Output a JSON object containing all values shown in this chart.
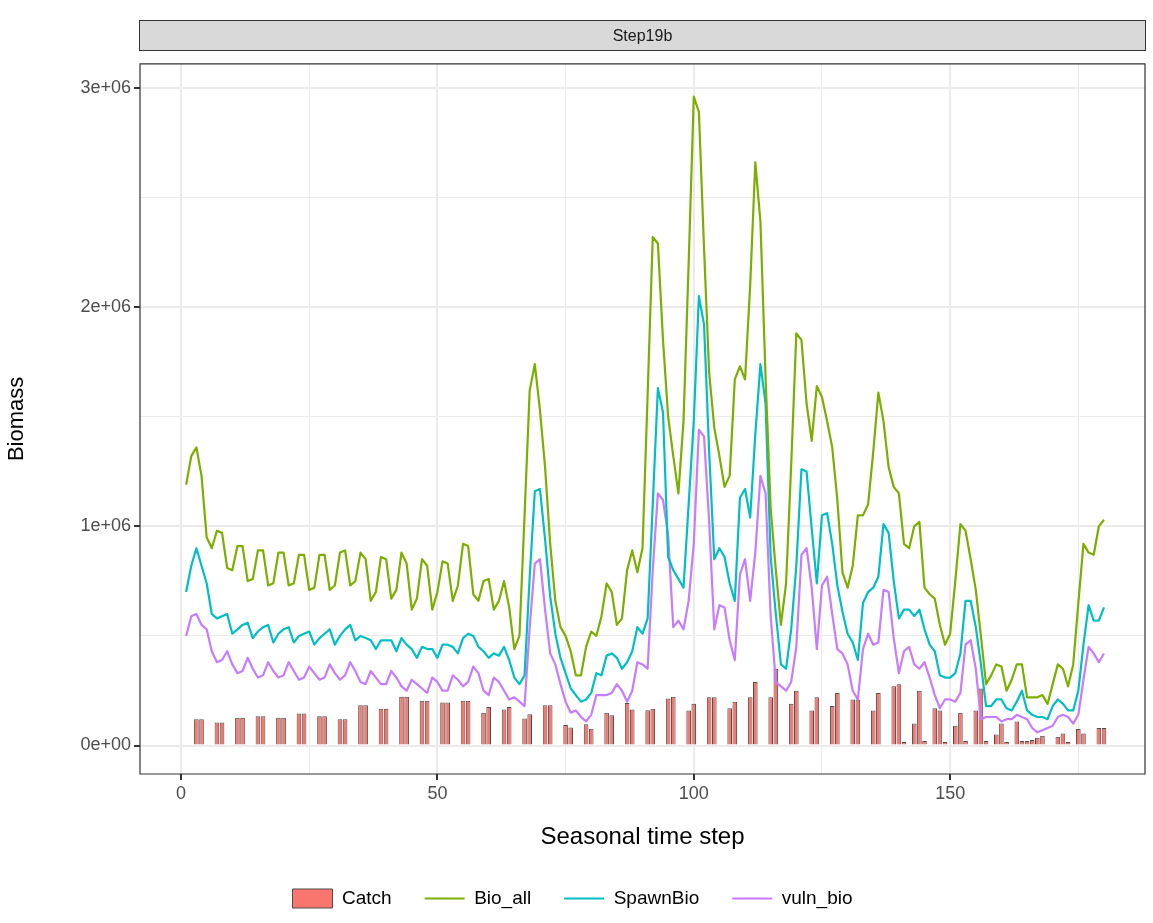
{
  "chart_data": {
    "type": "line",
    "title": "Step19b",
    "xlabel": "Seasonal time step",
    "ylabel": "Biomass",
    "x": [
      1,
      2,
      3,
      4,
      5,
      6,
      7,
      8,
      9,
      10,
      11,
      12,
      13,
      14,
      15,
      16,
      17,
      18,
      19,
      20,
      21,
      22,
      23,
      24,
      25,
      26,
      27,
      28,
      29,
      30,
      31,
      32,
      33,
      34,
      35,
      36,
      37,
      38,
      39,
      40,
      41,
      42,
      43,
      44,
      45,
      46,
      47,
      48,
      49,
      50,
      51,
      52,
      53,
      54,
      55,
      56,
      57,
      58,
      59,
      60,
      61,
      62,
      63,
      64,
      65,
      66,
      67,
      68,
      69,
      70,
      71,
      72,
      73,
      74,
      75,
      76,
      77,
      78,
      79,
      80,
      81,
      82,
      83,
      84,
      85,
      86,
      87,
      88,
      89,
      90,
      91,
      92,
      93,
      94,
      95,
      96,
      97,
      98,
      99,
      100,
      101,
      102,
      103,
      104,
      105,
      106,
      107,
      108,
      109,
      110,
      111,
      112,
      113,
      114,
      115,
      116,
      117,
      118,
      119,
      120,
      121,
      122,
      123,
      124,
      125,
      126,
      127,
      128,
      129,
      130,
      131,
      132,
      133,
      134,
      135,
      136,
      137,
      138,
      139,
      140,
      141,
      142,
      143,
      144,
      145,
      146,
      147,
      148,
      149,
      150,
      151,
      152,
      153,
      154,
      155,
      156,
      157,
      158,
      159,
      160,
      161,
      162,
      163,
      164,
      165,
      166,
      167,
      168,
      169,
      170,
      171,
      172,
      173,
      174,
      175,
      176,
      177,
      178,
      179,
      180
    ],
    "series": [
      {
        "name": "Catch",
        "type": "bar",
        "color": "#f8766d",
        "x": [
          3,
          4,
          7,
          8,
          11,
          12,
          15,
          16,
          19,
          20,
          23,
          24,
          27,
          28,
          31,
          32,
          35,
          36,
          39,
          40,
          43,
          44,
          47,
          48,
          51,
          52,
          55,
          56,
          59,
          60,
          63,
          64,
          67,
          68,
          71,
          72,
          75,
          76,
          79,
          80,
          83,
          84,
          87,
          88,
          91,
          92,
          95,
          96,
          99,
          100,
          103,
          104,
          107,
          108,
          111,
          112,
          115,
          116,
          119,
          120,
          123,
          124,
          127,
          128,
          131,
          132,
          135,
          136,
          139,
          140,
          141,
          143,
          144,
          145,
          147,
          148,
          149,
          151,
          152,
          153,
          155,
          156,
          157,
          159,
          160,
          161,
          163,
          164,
          165,
          166,
          167,
          168,
          171,
          172,
          173,
          175,
          176,
          179,
          180
        ],
        "values": [
          120000,
          120000,
          105000,
          105000,
          127000,
          127000,
          134000,
          134000,
          127000,
          127000,
          146000,
          146000,
          134000,
          134000,
          120000,
          120000,
          184000,
          184000,
          168000,
          168000,
          222000,
          222000,
          204000,
          204000,
          196000,
          196000,
          204000,
          204000,
          149000,
          176000,
          164000,
          176000,
          123000,
          143000,
          184000,
          184000,
          93000,
          82000,
          97000,
          77000,
          149000,
          138000,
          194000,
          164000,
          161000,
          168000,
          214000,
          222000,
          160000,
          190000,
          220000,
          220000,
          170000,
          200000,
          220000,
          290000,
          220000,
          350000,
          190000,
          250000,
          160000,
          220000,
          180000,
          240000,
          210000,
          210000,
          160000,
          240000,
          270000,
          280000,
          16000,
          100000,
          250000,
          20000,
          170000,
          160000,
          16000,
          90000,
          150000,
          20000,
          160000,
          260000,
          20000,
          50000,
          100000,
          16000,
          110000,
          20000,
          20000,
          25000,
          35000,
          45000,
          40000,
          55000,
          16000,
          75000,
          55000,
          80000,
          80000
        ]
      },
      {
        "name": "Bio_all",
        "color": "#7cae00",
        "values": [
          1190000,
          1320000,
          1360000,
          1230000,
          950000,
          900000,
          980000,
          970000,
          810000,
          800000,
          910000,
          910000,
          750000,
          760000,
          890000,
          890000,
          730000,
          740000,
          880000,
          880000,
          730000,
          740000,
          870000,
          870000,
          710000,
          720000,
          870000,
          870000,
          710000,
          730000,
          880000,
          890000,
          730000,
          750000,
          880000,
          850000,
          660000,
          700000,
          860000,
          850000,
          670000,
          710000,
          880000,
          830000,
          620000,
          670000,
          850000,
          820000,
          620000,
          700000,
          840000,
          830000,
          660000,
          730000,
          920000,
          910000,
          690000,
          660000,
          750000,
          760000,
          620000,
          660000,
          750000,
          630000,
          440000,
          500000,
          1050000,
          1620000,
          1740000,
          1530000,
          1270000,
          920000,
          660000,
          540000,
          500000,
          430000,
          320000,
          320000,
          450000,
          520000,
          500000,
          590000,
          740000,
          700000,
          550000,
          580000,
          800000,
          890000,
          790000,
          900000,
          1600000,
          2320000,
          2290000,
          1850000,
          1500000,
          1320000,
          1150000,
          1480000,
          2200000,
          2960000,
          2890000,
          2270000,
          1700000,
          1450000,
          1320000,
          1180000,
          1230000,
          1670000,
          1730000,
          1670000,
          2100000,
          2660000,
          2390000,
          1680000,
          1080000,
          800000,
          550000,
          740000,
          1280000,
          1880000,
          1850000,
          1560000,
          1390000,
          1640000,
          1590000,
          1480000,
          1360000,
          1120000,
          790000,
          720000,
          820000,
          1050000,
          1050000,
          1100000,
          1340000,
          1610000,
          1480000,
          1270000,
          1180000,
          1150000,
          920000,
          900000,
          1000000,
          1020000,
          720000,
          690000,
          670000,
          550000,
          460000,
          510000,
          750000,
          1010000,
          980000,
          850000,
          710000,
          500000,
          280000,
          320000,
          370000,
          360000,
          250000,
          300000,
          370000,
          370000,
          220000,
          220000,
          220000,
          230000,
          190000,
          280000,
          370000,
          350000,
          270000,
          370000,
          650000,
          920000,
          880000,
          870000,
          1000000,
          1030000
        ]
      },
      {
        "name": "SpawnBio",
        "color": "#00bfc4",
        "values": [
          700000,
          820000,
          900000,
          820000,
          740000,
          600000,
          580000,
          590000,
          600000,
          510000,
          530000,
          550000,
          560000,
          490000,
          520000,
          540000,
          550000,
          470000,
          510000,
          530000,
          540000,
          470000,
          500000,
          510000,
          520000,
          460000,
          490000,
          510000,
          530000,
          460000,
          500000,
          530000,
          550000,
          480000,
          500000,
          490000,
          480000,
          440000,
          480000,
          480000,
          480000,
          430000,
          490000,
          460000,
          440000,
          400000,
          450000,
          440000,
          440000,
          400000,
          460000,
          460000,
          450000,
          420000,
          490000,
          510000,
          500000,
          450000,
          430000,
          400000,
          420000,
          410000,
          450000,
          390000,
          310000,
          280000,
          320000,
          770000,
          1160000,
          1170000,
          940000,
          680000,
          510000,
          400000,
          330000,
          260000,
          230000,
          200000,
          210000,
          240000,
          330000,
          320000,
          410000,
          420000,
          400000,
          350000,
          380000,
          430000,
          540000,
          510000,
          580000,
          1100000,
          1630000,
          1520000,
          860000,
          800000,
          760000,
          720000,
          1100000,
          1480000,
          2050000,
          1920000,
          1340000,
          850000,
          900000,
          860000,
          740000,
          660000,
          1130000,
          1170000,
          1040000,
          1420000,
          1740000,
          1560000,
          860000,
          600000,
          370000,
          350000,
          530000,
          820000,
          1260000,
          1250000,
          990000,
          740000,
          1050000,
          1060000,
          920000,
          730000,
          610000,
          510000,
          470000,
          390000,
          650000,
          700000,
          720000,
          770000,
          1010000,
          970000,
          750000,
          580000,
          620000,
          620000,
          590000,
          620000,
          530000,
          460000,
          430000,
          320000,
          310000,
          310000,
          330000,
          420000,
          660000,
          660000,
          540000,
          370000,
          180000,
          180000,
          210000,
          210000,
          170000,
          160000,
          200000,
          250000,
          160000,
          140000,
          130000,
          130000,
          120000,
          180000,
          210000,
          190000,
          160000,
          160000,
          250000,
          460000,
          640000,
          570000,
          570000,
          630000
        ]
      },
      {
        "name": "vuln_bio",
        "color": "#c77cff",
        "values": [
          500000,
          590000,
          600000,
          550000,
          530000,
          430000,
          380000,
          390000,
          430000,
          370000,
          330000,
          340000,
          400000,
          350000,
          310000,
          320000,
          380000,
          340000,
          310000,
          320000,
          380000,
          340000,
          300000,
          310000,
          360000,
          330000,
          300000,
          310000,
          370000,
          330000,
          300000,
          320000,
          380000,
          340000,
          290000,
          280000,
          340000,
          310000,
          280000,
          280000,
          340000,
          310000,
          270000,
          250000,
          300000,
          280000,
          260000,
          240000,
          310000,
          290000,
          250000,
          250000,
          320000,
          300000,
          270000,
          290000,
          360000,
          330000,
          250000,
          230000,
          310000,
          290000,
          250000,
          210000,
          220000,
          200000,
          180000,
          540000,
          830000,
          850000,
          620000,
          420000,
          370000,
          280000,
          200000,
          150000,
          160000,
          130000,
          110000,
          140000,
          230000,
          230000,
          230000,
          240000,
          280000,
          250000,
          200000,
          250000,
          380000,
          370000,
          350000,
          800000,
          1150000,
          1120000,
          960000,
          540000,
          570000,
          530000,
          660000,
          920000,
          1440000,
          1410000,
          1020000,
          530000,
          640000,
          630000,
          480000,
          390000,
          780000,
          850000,
          660000,
          880000,
          1230000,
          1150000,
          590000,
          290000,
          270000,
          250000,
          290000,
          450000,
          870000,
          900000,
          720000,
          440000,
          730000,
          770000,
          600000,
          440000,
          420000,
          370000,
          250000,
          210000,
          440000,
          510000,
          460000,
          470000,
          710000,
          700000,
          490000,
          330000,
          430000,
          450000,
          370000,
          350000,
          380000,
          310000,
          230000,
          170000,
          210000,
          210000,
          200000,
          240000,
          460000,
          480000,
          350000,
          120000,
          130000,
          130000,
          130000,
          110000,
          120000,
          120000,
          140000,
          130000,
          120000,
          80000,
          60000,
          70000,
          80000,
          90000,
          130000,
          140000,
          130000,
          100000,
          140000,
          300000,
          450000,
          420000,
          380000,
          420000
        ]
      }
    ],
    "xlim": [
      -8,
      188
    ],
    "xticks": [
      0,
      {
        "value": 25,
        "label": null
      },
      50,
      {
        "value": 75,
        "label": null
      },
      100,
      {
        "value": 125,
        "label": null
      },
      150,
      {
        "value": 175,
        "label": null
      }
    ],
    "ylim": [
      -130000,
      3110000
    ],
    "yticks": [
      {
        "value": 0,
        "label": "0e+00"
      },
      {
        "value": 500000,
        "label": null
      },
      {
        "value": 1000000,
        "label": "1e+06"
      },
      {
        "value": 1500000,
        "label": null
      },
      {
        "value": 2000000,
        "label": "2e+06"
      },
      {
        "value": 2500000,
        "label": null
      },
      {
        "value": 3000000,
        "label": "3e+06"
      }
    ],
    "grid": true,
    "legend": "bottom",
    "marker": "none"
  }
}
